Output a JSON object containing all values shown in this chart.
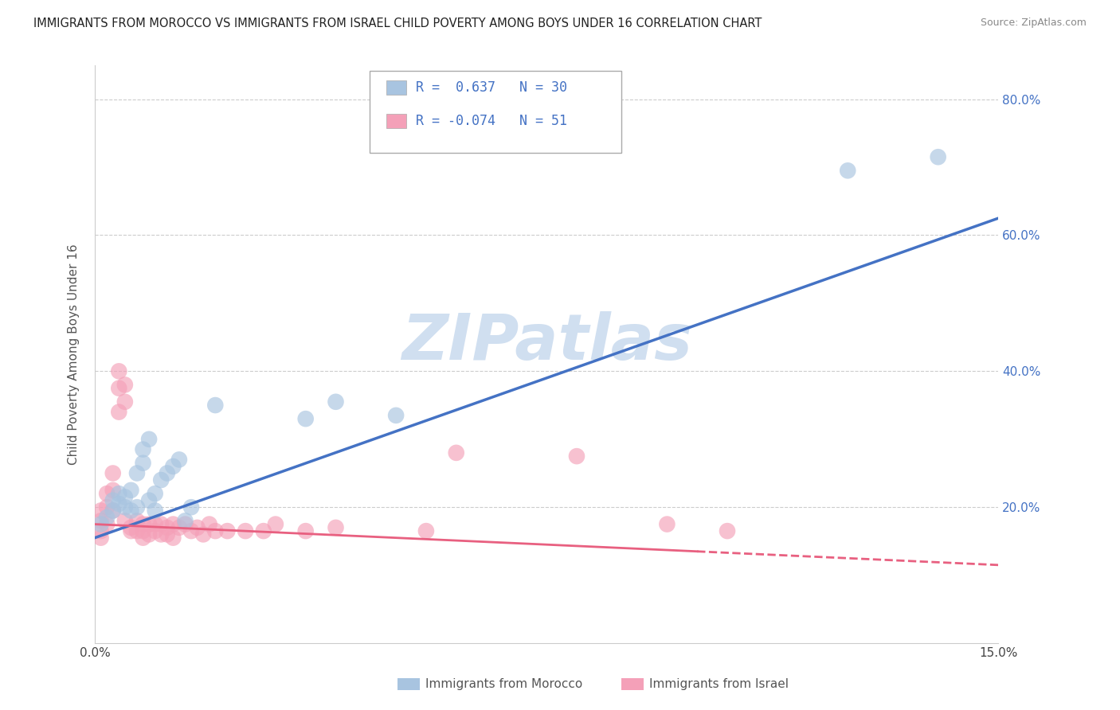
{
  "title": "IMMIGRANTS FROM MOROCCO VS IMMIGRANTS FROM ISRAEL CHILD POVERTY AMONG BOYS UNDER 16 CORRELATION CHART",
  "source": "Source: ZipAtlas.com",
  "ylabel": "Child Poverty Among Boys Under 16",
  "yticks_labels": [
    "20.0%",
    "40.0%",
    "60.0%",
    "80.0%"
  ],
  "ytick_vals": [
    0.2,
    0.4,
    0.6,
    0.8
  ],
  "xlim": [
    0.0,
    0.15
  ],
  "ylim": [
    0.0,
    0.85
  ],
  "morocco_R": 0.637,
  "morocco_N": 30,
  "israel_R": -0.074,
  "israel_N": 51,
  "morocco_color": "#a8c4e0",
  "israel_color": "#f4a0b8",
  "trendline_morocco_color": "#4472c4",
  "trendline_israel_color": "#e86080",
  "watermark": "ZIPatlas",
  "watermark_color": "#d0dff0",
  "legend_label_morocco": "Immigrants from Morocco",
  "legend_label_israel": "Immigrants from Israel",
  "morocco_trendline": [
    0.0,
    0.15,
    0.155,
    0.625
  ],
  "israel_trendline": [
    0.0,
    0.1,
    0.175,
    0.135
  ],
  "israel_trendline_dashed": [
    0.1,
    0.15,
    0.135,
    0.115
  ],
  "morocco_x": [
    0.001,
    0.002,
    0.003,
    0.003,
    0.004,
    0.004,
    0.005,
    0.005,
    0.006,
    0.006,
    0.007,
    0.007,
    0.008,
    0.008,
    0.009,
    0.009,
    0.01,
    0.01,
    0.011,
    0.012,
    0.013,
    0.014,
    0.015,
    0.016,
    0.02,
    0.035,
    0.04,
    0.05,
    0.125,
    0.14
  ],
  "morocco_y": [
    0.175,
    0.185,
    0.195,
    0.21,
    0.205,
    0.22,
    0.2,
    0.215,
    0.195,
    0.225,
    0.25,
    0.2,
    0.265,
    0.285,
    0.3,
    0.21,
    0.22,
    0.195,
    0.24,
    0.25,
    0.26,
    0.27,
    0.18,
    0.2,
    0.35,
    0.33,
    0.355,
    0.335,
    0.695,
    0.715
  ],
  "israel_x": [
    0.001,
    0.001,
    0.001,
    0.001,
    0.002,
    0.002,
    0.002,
    0.003,
    0.003,
    0.003,
    0.004,
    0.004,
    0.004,
    0.005,
    0.005,
    0.005,
    0.006,
    0.006,
    0.007,
    0.007,
    0.008,
    0.008,
    0.008,
    0.009,
    0.009,
    0.01,
    0.01,
    0.011,
    0.011,
    0.012,
    0.012,
    0.013,
    0.013,
    0.014,
    0.015,
    0.016,
    0.017,
    0.018,
    0.019,
    0.02,
    0.022,
    0.025,
    0.028,
    0.03,
    0.035,
    0.04,
    0.055,
    0.06,
    0.08,
    0.095,
    0.105
  ],
  "israel_y": [
    0.18,
    0.195,
    0.165,
    0.155,
    0.22,
    0.2,
    0.175,
    0.25,
    0.225,
    0.195,
    0.4,
    0.375,
    0.34,
    0.38,
    0.355,
    0.18,
    0.165,
    0.17,
    0.18,
    0.165,
    0.165,
    0.175,
    0.155,
    0.175,
    0.16,
    0.175,
    0.165,
    0.16,
    0.175,
    0.17,
    0.16,
    0.175,
    0.155,
    0.17,
    0.175,
    0.165,
    0.17,
    0.16,
    0.175,
    0.165,
    0.165,
    0.165,
    0.165,
    0.175,
    0.165,
    0.17,
    0.165,
    0.28,
    0.275,
    0.175,
    0.165
  ]
}
